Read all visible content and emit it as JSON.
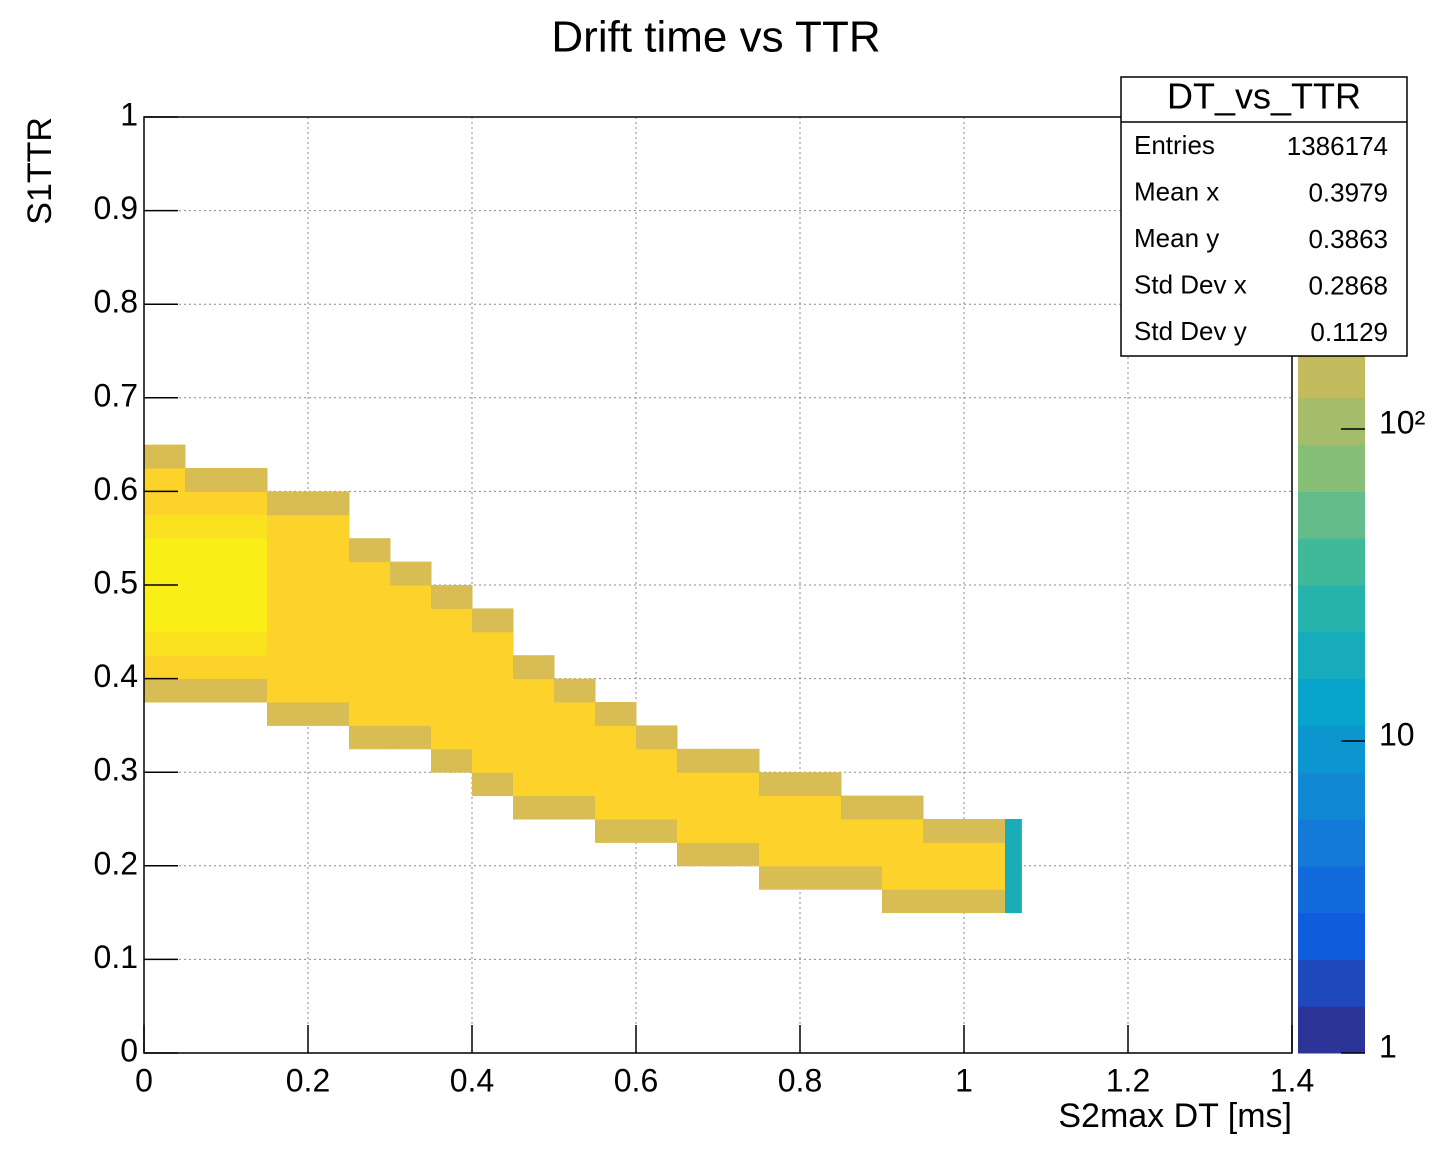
{
  "chart_data": {
    "type": "heatmap",
    "title": "Drift time vs TTR",
    "x_label": "S2max DT [ms]",
    "y_label": "S1TTR",
    "xlim": [
      0,
      1.4
    ],
    "ylim": [
      0,
      1
    ],
    "xticks": [
      0,
      0.2,
      0.4,
      0.6,
      0.8,
      1,
      1.2,
      1.4
    ],
    "yticks": [
      0,
      0.1,
      0.2,
      0.3,
      0.4,
      0.5,
      0.6,
      0.7,
      0.8,
      0.9,
      1
    ],
    "grid": true,
    "z_log": true,
    "zlim": [
      1,
      1000
    ],
    "zticks": [
      1,
      10,
      {
        "value": 100,
        "label": "10²"
      }
    ],
    "palette": [
      "#352a87",
      "#0f5cdd",
      "#1481d6",
      "#06a4ca",
      "#2eb7a4",
      "#87bf77",
      "#d1bb59",
      "#fec832",
      "#f9fb0e"
    ],
    "x_bins": [
      0,
      0.05,
      0.1,
      0.15,
      0.2,
      0.25,
      0.3,
      0.35,
      0.4,
      0.45,
      0.5,
      0.55,
      0.6,
      0.65,
      0.7,
      0.75,
      0.8,
      0.85,
      0.9,
      0.95,
      1,
      1.05,
      1.07
    ],
    "y_bins": [
      0.15,
      0.175,
      0.2,
      0.225,
      0.25,
      0.275,
      0.3,
      0.325,
      0.35,
      0.375,
      0.4,
      0.425,
      0.45,
      0.475,
      0.5,
      0.525,
      0.55,
      0.575,
      0.6,
      0.625,
      0.65
    ],
    "z": [
      [
        null,
        null,
        null,
        null,
        null,
        null,
        null,
        null,
        null,
        200,
        500,
        650,
        800,
        800,
        800,
        800,
        650,
        500,
        500,
        200
      ],
      [
        null,
        null,
        null,
        null,
        null,
        null,
        null,
        null,
        null,
        200,
        500,
        650,
        800,
        800,
        800,
        800,
        650,
        500,
        200,
        null
      ],
      [
        null,
        null,
        null,
        null,
        null,
        null,
        null,
        null,
        null,
        200,
        500,
        650,
        800,
        800,
        800,
        800,
        650,
        500,
        200,
        null
      ],
      [
        null,
        null,
        null,
        null,
        null,
        null,
        null,
        null,
        200,
        500,
        500,
        500,
        500,
        500,
        500,
        500,
        500,
        200,
        null,
        null
      ],
      [
        null,
        null,
        null,
        null,
        null,
        null,
        null,
        null,
        200,
        500,
        500,
        500,
        500,
        500,
        500,
        500,
        500,
        200,
        null,
        null
      ],
      [
        null,
        null,
        null,
        null,
        null,
        null,
        null,
        200,
        500,
        500,
        500,
        500,
        500,
        500,
        500,
        200,
        null,
        null,
        null,
        null
      ],
      [
        null,
        null,
        null,
        null,
        null,
        null,
        null,
        200,
        500,
        500,
        500,
        500,
        500,
        500,
        200,
        null,
        null,
        null,
        null,
        null
      ],
      [
        null,
        null,
        null,
        null,
        null,
        null,
        200,
        500,
        500,
        500,
        500,
        500,
        500,
        200,
        null,
        null,
        null,
        null,
        null,
        null
      ],
      [
        null,
        null,
        null,
        null,
        null,
        200,
        500,
        500,
        500,
        500,
        500,
        500,
        200,
        null,
        null,
        null,
        null,
        null,
        null,
        null
      ],
      [
        null,
        null,
        null,
        null,
        200,
        500,
        500,
        500,
        500,
        500,
        200,
        null,
        null,
        null,
        null,
        null,
        null,
        null,
        null,
        null
      ],
      [
        null,
        null,
        null,
        null,
        200,
        500,
        500,
        500,
        500,
        200,
        null,
        null,
        null,
        null,
        null,
        null,
        null,
        null,
        null,
        null
      ],
      [
        null,
        null,
        null,
        200,
        500,
        500,
        500,
        500,
        200,
        null,
        null,
        null,
        null,
        null,
        null,
        null,
        null,
        null,
        null,
        null
      ],
      [
        null,
        null,
        null,
        200,
        500,
        500,
        500,
        200,
        null,
        null,
        null,
        null,
        null,
        null,
        null,
        null,
        null,
        null,
        null,
        null
      ],
      [
        null,
        null,
        200,
        500,
        500,
        500,
        200,
        null,
        null,
        null,
        null,
        null,
        null,
        null,
        null,
        null,
        null,
        null,
        null,
        null
      ],
      [
        null,
        null,
        200,
        500,
        500,
        500,
        200,
        null,
        null,
        null,
        null,
        null,
        null,
        null,
        null,
        null,
        null,
        null,
        null,
        null
      ],
      [
        null,
        200,
        500,
        500,
        500,
        200,
        null,
        null,
        null,
        null,
        null,
        null,
        null,
        null,
        null,
        null,
        null,
        null,
        null,
        null
      ],
      [
        null,
        200,
        500,
        500,
        500,
        200,
        null,
        null,
        null,
        null,
        null,
        null,
        null,
        null,
        null,
        null,
        null,
        null,
        null,
        null
      ],
      [
        null,
        200,
        500,
        500,
        200,
        null,
        null,
        null,
        null,
        null,
        null,
        null,
        null,
        null,
        null,
        null,
        null,
        null,
        null,
        null
      ],
      [
        200,
        500,
        500,
        500,
        200,
        null,
        null,
        null,
        null,
        null,
        null,
        null,
        null,
        null,
        null,
        null,
        null,
        null,
        null,
        null
      ],
      [
        200,
        500,
        500,
        200,
        null,
        null,
        null,
        null,
        null,
        null,
        null,
        null,
        null,
        null,
        null,
        null,
        null,
        null,
        null,
        null
      ],
      [
        200,
        500,
        500,
        200,
        null,
        null,
        null,
        null,
        null,
        null,
        null,
        null,
        null,
        null,
        null,
        null,
        null,
        null,
        null,
        null
      ],
      [
        20,
        20,
        20,
        20,
        null,
        null,
        null,
        null,
        null,
        null,
        null,
        null,
        null,
        null,
        null,
        null,
        null,
        null,
        null,
        null
      ]
    ],
    "stats": {
      "title": "DT_vs_TTR",
      "rows": [
        {
          "name": "Entries",
          "value": 1386174
        },
        {
          "name": "Mean x",
          "value": 0.3979
        },
        {
          "name": "Mean y",
          "value": 0.3863
        },
        {
          "name": "Std Dev x",
          "value": 0.2868
        },
        {
          "name": "Std Dev y",
          "value": 0.1129
        }
      ]
    }
  }
}
